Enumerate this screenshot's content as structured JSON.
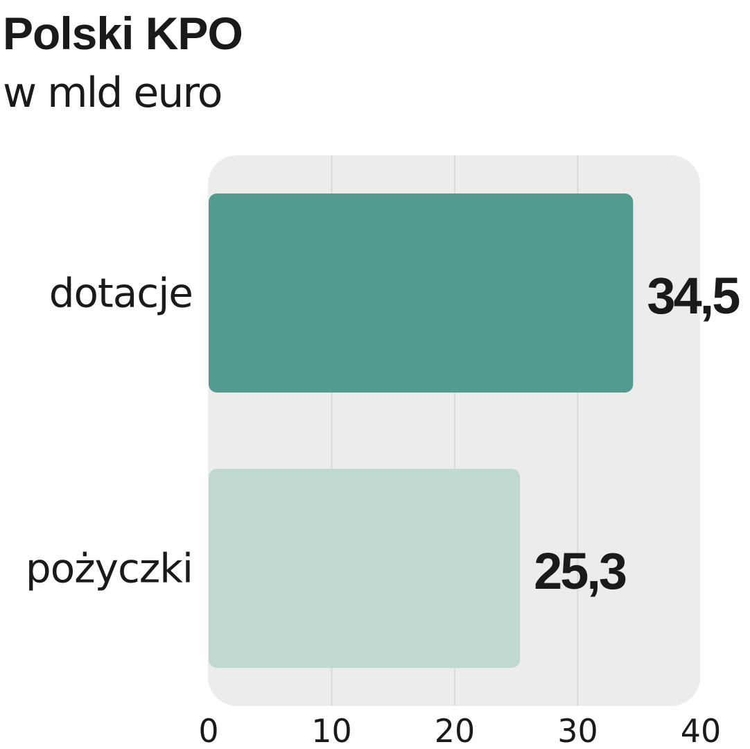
{
  "title": "Polski KPO",
  "subtitle": "w mld euro",
  "colors": {
    "panel": "#ececeb",
    "gridline": "#d9d9d9",
    "bar_dotacje": "#529b8f",
    "bar_pozyczki": "#bfd9d1",
    "text": "#1a1a1a"
  },
  "chart_data": {
    "type": "bar",
    "orientation": "horizontal",
    "categories": [
      "dotacje",
      "pożyczki"
    ],
    "values": [
      34.5,
      25.3
    ],
    "value_labels": [
      "34,5",
      "25,3"
    ],
    "xlim": [
      0,
      40
    ],
    "xticks": [
      0,
      10,
      20,
      30,
      40
    ],
    "xtick_labels": [
      "0",
      "10",
      "20",
      "30",
      "40"
    ],
    "grid": true,
    "legend": "none",
    "title": "Polski KPO",
    "subtitle": "w mld euro",
    "xlabel": "",
    "ylabel": ""
  }
}
